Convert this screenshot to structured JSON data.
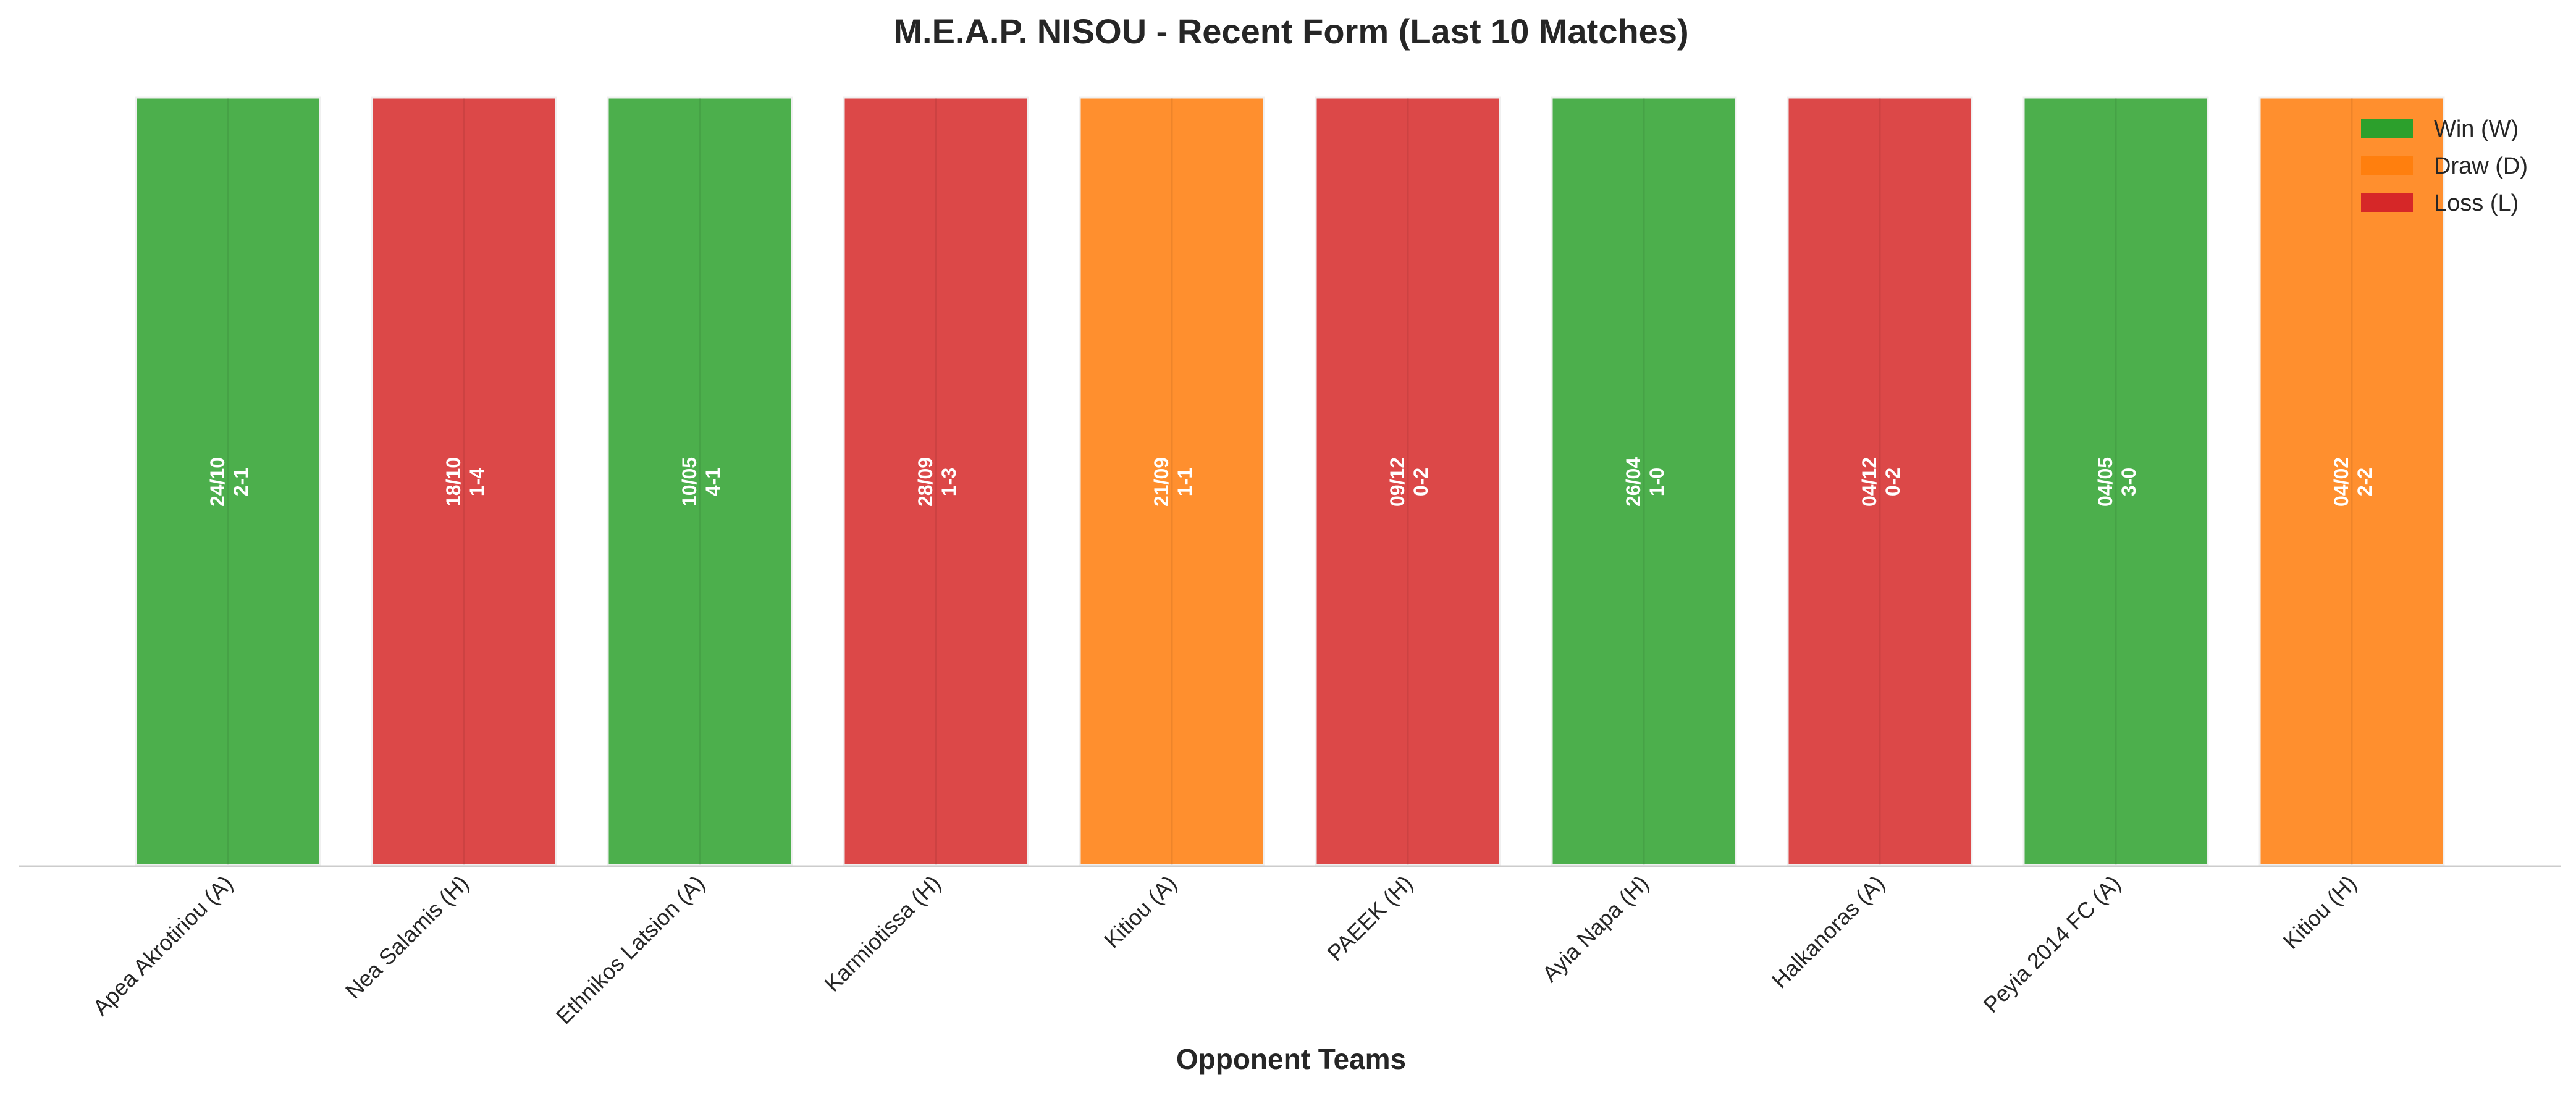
{
  "chart_data": {
    "type": "bar",
    "title": "M.E.A.P. NISOU - Recent Form (Last 10 Matches)",
    "xlabel": "Opponent Teams",
    "ylabel": "",
    "ylim": [
      0,
      1
    ],
    "grid": false,
    "legend_position": "top-right",
    "categories": [
      "Apea Akrotiriou (A)",
      "Nea Salamis (H)",
      "Ethnikos Latsion (A)",
      "Karmiotissa (H)",
      "Kitiou (A)",
      "PAEEK (H)",
      "Ayia Napa (H)",
      "Halkanoras (A)",
      "Peyia 2014 FC (A)",
      "Kitiou (H)"
    ],
    "values": [
      1,
      1,
      1,
      1,
      1,
      1,
      1,
      1,
      1,
      1
    ],
    "results": [
      "W",
      "L",
      "W",
      "L",
      "D",
      "L",
      "W",
      "L",
      "W",
      "D"
    ],
    "dates": [
      "24/10",
      "18/10",
      "10/05",
      "28/09",
      "21/09",
      "09/12",
      "26/04",
      "04/12",
      "04/05",
      "04/02"
    ],
    "scores": [
      "2-1",
      "1-4",
      "4-1",
      "1-3",
      "1-1",
      "0-2",
      "1-0",
      "0-2",
      "3-0",
      "2-2"
    ],
    "legend": [
      {
        "key": "W",
        "label": "Win (W)",
        "color": "#2ca02c"
      },
      {
        "key": "D",
        "label": "Draw (D)",
        "color": "#ff7f0e"
      },
      {
        "key": "L",
        "label": "Loss (L)",
        "color": "#d62728"
      }
    ],
    "colors": {
      "W": "#4caf4c",
      "D": "#ff8f2e",
      "L": "#dc4848",
      "bar_edge": "#f0f0f0",
      "axis": "#cccccc"
    }
  }
}
